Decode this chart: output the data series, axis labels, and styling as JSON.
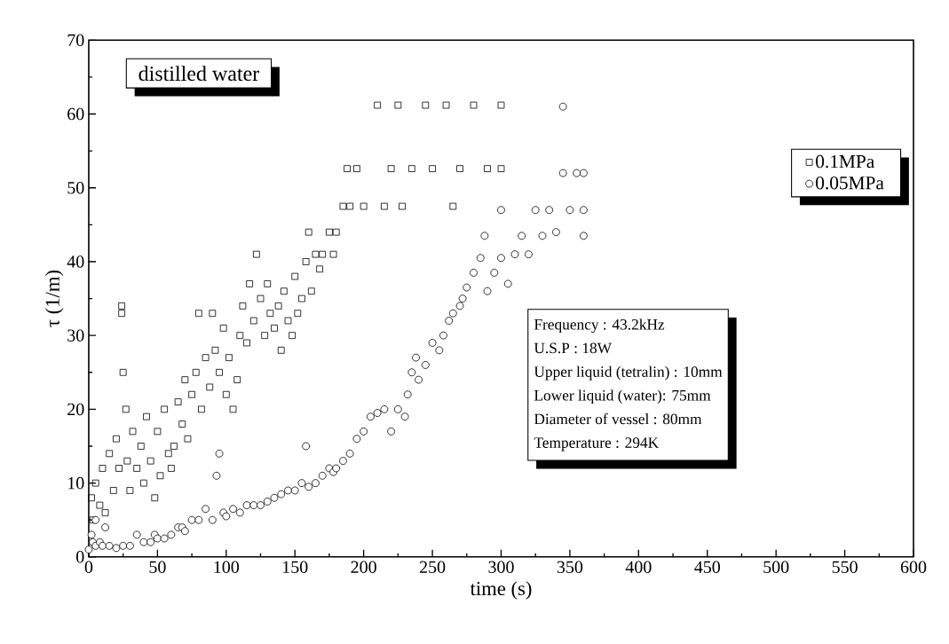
{
  "chart_data": {
    "type": "scatter",
    "xlabel": "time (s)",
    "ylabel": "τ (1/m)",
    "xlim": [
      0,
      600
    ],
    "ylim": [
      0,
      70
    ],
    "xticks": [
      0,
      50,
      100,
      150,
      200,
      250,
      300,
      350,
      400,
      450,
      500,
      550,
      600
    ],
    "yticks": [
      0,
      10,
      20,
      30,
      40,
      50,
      60,
      70
    ],
    "grid": false,
    "legend": "top right",
    "annotations": [
      "distilled water",
      "Frequency : 43.2kHz",
      "U.S.P : 18W",
      "Upper liquid (tetralin) : 10mm",
      "Lower liquid (water): 75mm",
      "Diameter of vessel : 80mm",
      "Temperature : 294K"
    ],
    "series": [
      {
        "name": "0.1MPa",
        "color": "#000000",
        "marker": "square",
        "x": [
          2,
          3,
          5,
          8,
          10,
          12,
          15,
          18,
          20,
          22,
          24,
          24,
          25,
          27,
          28,
          30,
          32,
          35,
          38,
          40,
          42,
          45,
          48,
          50,
          52,
          55,
          58,
          60,
          62,
          65,
          68,
          70,
          72,
          75,
          78,
          80,
          82,
          85,
          88,
          90,
          92,
          95,
          98,
          100,
          102,
          105,
          108,
          110,
          112,
          115,
          117,
          120,
          122,
          125,
          128,
          130,
          132,
          135,
          138,
          140,
          142,
          145,
          148,
          150,
          152,
          155,
          158,
          160,
          162,
          165,
          168,
          170,
          175,
          178,
          180,
          185,
          188,
          190,
          195,
          200,
          210,
          215,
          220,
          225,
          228,
          235,
          245,
          250,
          260,
          265,
          270,
          280,
          290,
          300,
          300
        ],
        "values": [
          8,
          5,
          10,
          7,
          12,
          6,
          14,
          9,
          16,
          12,
          34,
          33,
          25,
          20,
          13,
          9,
          17,
          12,
          15,
          10,
          19,
          13,
          8,
          17,
          11,
          20,
          14,
          12,
          15,
          21,
          18,
          24,
          16,
          22,
          25,
          33,
          20,
          27,
          23,
          33,
          28,
          25,
          31,
          22,
          27,
          20,
          24,
          30,
          34,
          29,
          37,
          32,
          41,
          35,
          30,
          37,
          33,
          31,
          34,
          28,
          36,
          32,
          30,
          38,
          33,
          35,
          40,
          44,
          36,
          41,
          39,
          41,
          44,
          41,
          44,
          47.5,
          52.6,
          47.5,
          52.6,
          47.5,
          61.2,
          47.5,
          52.6,
          61.2,
          47.5,
          52.6,
          61.2,
          52.6,
          61.2,
          47.5,
          52.6,
          61.2,
          52.6,
          61.2,
          52.6
        ]
      },
      {
        "name": "0.05MPa",
        "color": "#000000",
        "marker": "circle",
        "x": [
          0,
          2,
          3,
          5,
          5,
          8,
          10,
          12,
          15,
          20,
          25,
          30,
          35,
          40,
          45,
          48,
          50,
          55,
          60,
          65,
          68,
          70,
          75,
          80,
          85,
          90,
          93,
          95,
          98,
          100,
          105,
          110,
          115,
          120,
          125,
          130,
          135,
          140,
          145,
          150,
          155,
          158,
          160,
          165,
          170,
          175,
          178,
          180,
          185,
          190,
          195,
          200,
          205,
          210,
          215,
          220,
          225,
          230,
          232,
          235,
          238,
          240,
          245,
          250,
          255,
          258,
          262,
          265,
          270,
          272,
          275,
          280,
          285,
          288,
          290,
          295,
          300,
          300,
          305,
          310,
          315,
          320,
          325,
          330,
          335,
          340,
          345,
          345,
          350,
          355,
          360,
          360,
          360
        ],
        "values": [
          1,
          3,
          2,
          5,
          1.5,
          2,
          1.5,
          4,
          1.5,
          1.2,
          1.5,
          1.5,
          3,
          2,
          2,
          3,
          2.5,
          2.5,
          3,
          4,
          4,
          3.5,
          5,
          5,
          6.5,
          5,
          11,
          14,
          6,
          5.5,
          6.5,
          6,
          7,
          7,
          7,
          7.5,
          8,
          8.5,
          9,
          9,
          10,
          15,
          9.5,
          10,
          11,
          12,
          11.5,
          12,
          13,
          14,
          16,
          17,
          19,
          19.5,
          20,
          17,
          20,
          19,
          22,
          25,
          27,
          24,
          26,
          29,
          28,
          30,
          32,
          33,
          34,
          35,
          36.5,
          38.5,
          40.5,
          43.5,
          36,
          38.5,
          40.5,
          47,
          37,
          41,
          43.5,
          41,
          47,
          43.5,
          47,
          44,
          61,
          52,
          47,
          52,
          52,
          47,
          43.5
        ]
      }
    ]
  }
}
